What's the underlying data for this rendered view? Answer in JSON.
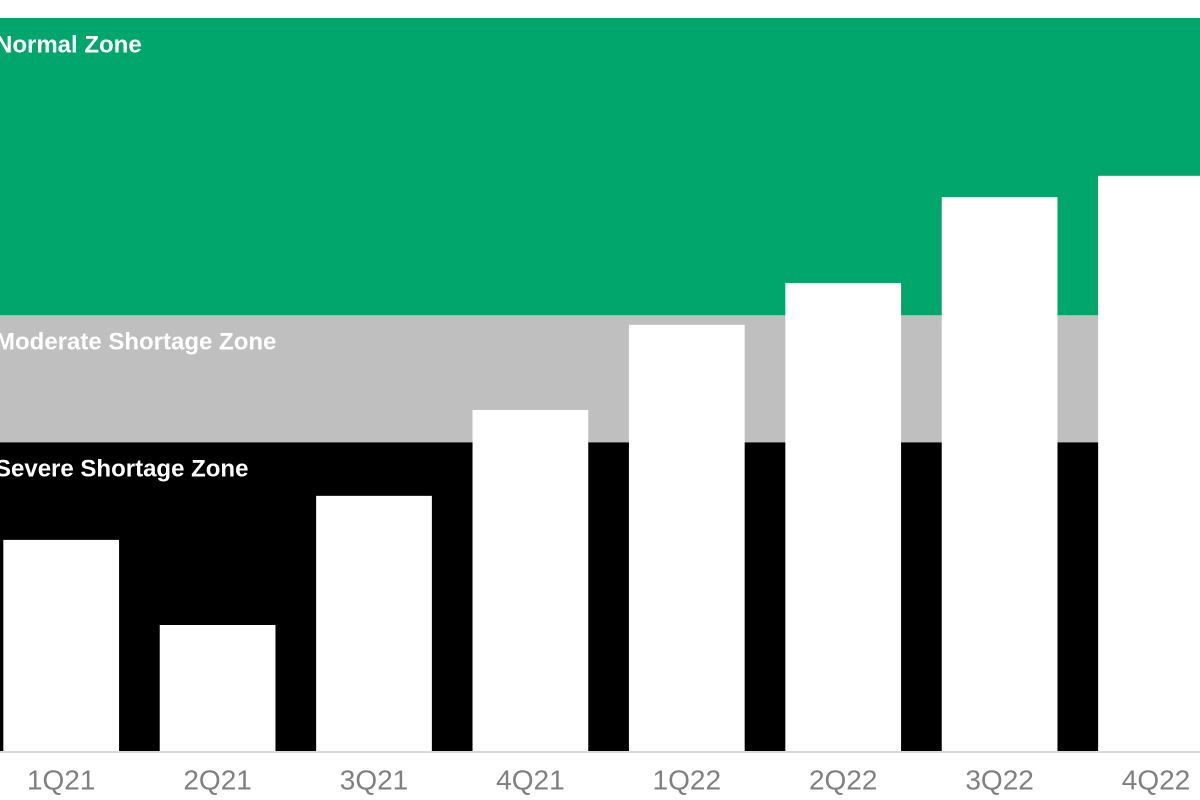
{
  "chart_data": {
    "type": "bar",
    "categories": [
      "1Q21",
      "2Q21",
      "3Q21",
      "4Q21",
      "1Q22",
      "2Q22",
      "3Q22",
      "4Q22"
    ],
    "values": [
      28.9,
      17.3,
      34.9,
      46.6,
      58.2,
      63.9,
      75.6,
      78.5
    ],
    "color": "#ffffff",
    "ylim": [
      0,
      100
    ],
    "zones": [
      {
        "name": "Severe Shortage Zone",
        "color": "#000000",
        "from": 0,
        "to": 42.2
      },
      {
        "name": "Moderate Shortage Zone",
        "color": "#bfbfbf",
        "from": 42.2,
        "to": 59.5
      },
      {
        "name": "Normal Zone",
        "color": "#00a66c",
        "from": 59.5,
        "to": 100
      }
    ]
  }
}
